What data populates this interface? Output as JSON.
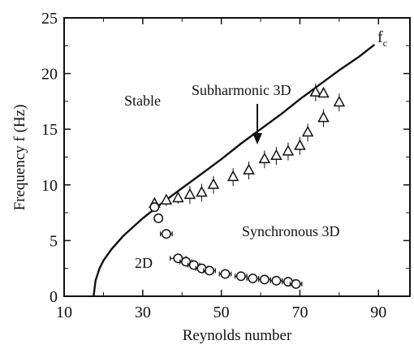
{
  "chart_data": {
    "type": "scatter",
    "xlabel": "Reynolds number",
    "ylabel": "Frequency  f (Hz)",
    "xlim": [
      10,
      98
    ],
    "ylim": [
      0,
      25
    ],
    "xticks": [
      10,
      30,
      50,
      70,
      90
    ],
    "yticks": [
      0,
      5,
      10,
      15,
      20,
      25
    ],
    "annotations": {
      "stable": "Stable",
      "subharmonic": "Subharmonic 3D",
      "synchronous": "Synchronous 3D",
      "twod": "2D",
      "curve_label_main": "f",
      "curve_label_sub": "c"
    },
    "series": [
      {
        "marker": "line",
        "x": [
          17.5,
          18,
          19,
          20,
          22,
          25,
          30,
          35,
          40,
          45,
          50,
          55,
          60,
          65,
          70,
          75,
          80,
          85,
          89
        ],
        "y": [
          0,
          1.4,
          2.5,
          3.2,
          4.2,
          5.4,
          7.0,
          8.4,
          9.7,
          11.0,
          12.3,
          13.7,
          15.0,
          16.3,
          17.7,
          19.0,
          20.3,
          21.5,
          22.6
        ]
      },
      {
        "marker": "triangle",
        "x": [
          33,
          36,
          39,
          42,
          45,
          48,
          53,
          57,
          61,
          64,
          67,
          70,
          72,
          74,
          76,
          80
        ],
        "y": [
          8.3,
          8.6,
          8.8,
          9.1,
          9.3,
          10.0,
          10.7,
          11.3,
          12.3,
          12.6,
          13.0,
          13.5,
          14.7,
          18.3,
          16.0,
          17.4
        ]
      },
      {
        "marker": "triangle",
        "x": [
          76
        ],
        "y": [
          18.2
        ]
      },
      {
        "marker": "circle",
        "x": [
          33,
          34,
          36,
          39,
          41,
          43,
          45,
          47,
          51,
          55,
          58,
          61,
          64,
          67,
          69
        ],
        "y": [
          8.0,
          7.0,
          5.6,
          3.4,
          3.1,
          2.8,
          2.5,
          2.3,
          2.0,
          1.8,
          1.6,
          1.5,
          1.4,
          1.3,
          1.1
        ]
      }
    ],
    "errorbars": {
      "circle": [
        0.6,
        0.6,
        1.5,
        2.0,
        1.5,
        1.5,
        1.5,
        1.5,
        1.5,
        1.5,
        1.5,
        1.5,
        1.5,
        1.5,
        1.5
      ],
      "triangle": [
        0.5,
        0.5,
        0.5,
        0.8,
        0.8,
        0.8,
        0.8,
        0.8,
        0.8,
        0.8,
        0.8,
        0.8,
        0.8,
        0.8,
        0.8,
        0.8
      ]
    }
  }
}
